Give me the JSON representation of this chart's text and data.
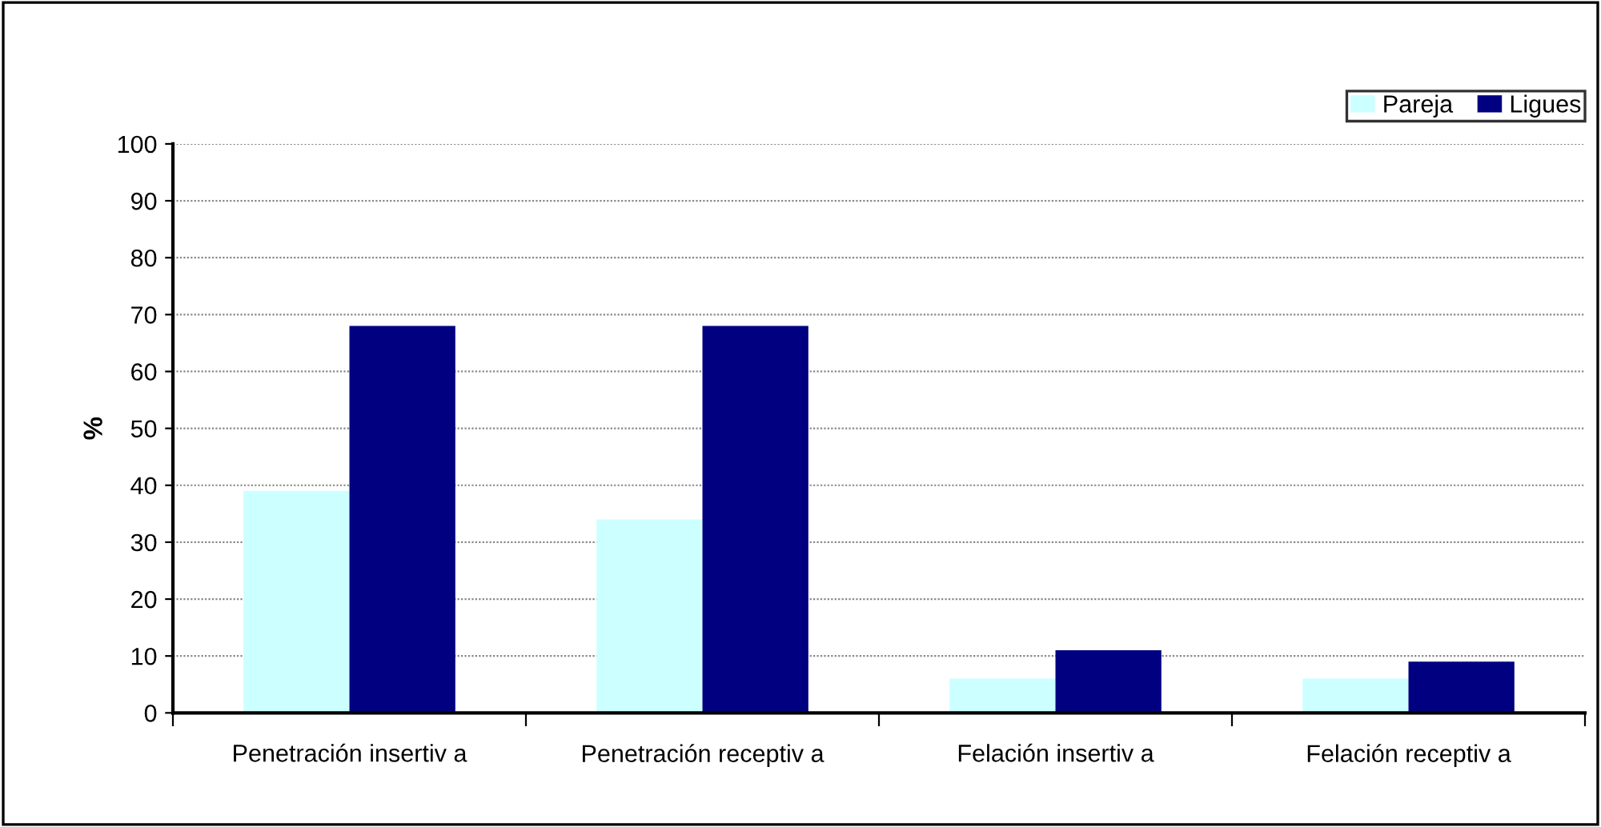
{
  "chart_data": {
    "type": "bar",
    "ylabel": "%",
    "categories": [
      "Penetración insertiv a",
      "Penetración receptiv a",
      "Felación insertiv a",
      "Felación receptiv a"
    ],
    "series": [
      {
        "name": "Pareja",
        "color": "#ccffff",
        "values": [
          39,
          34,
          6,
          6
        ]
      },
      {
        "name": "Ligues",
        "color": "#000080",
        "values": [
          68,
          68,
          11,
          9
        ]
      }
    ],
    "ylim": [
      0,
      100
    ],
    "yticks": [
      0,
      10,
      20,
      30,
      40,
      50,
      60,
      70,
      80,
      90,
      100
    ],
    "grid": "y",
    "legend": "top right"
  }
}
